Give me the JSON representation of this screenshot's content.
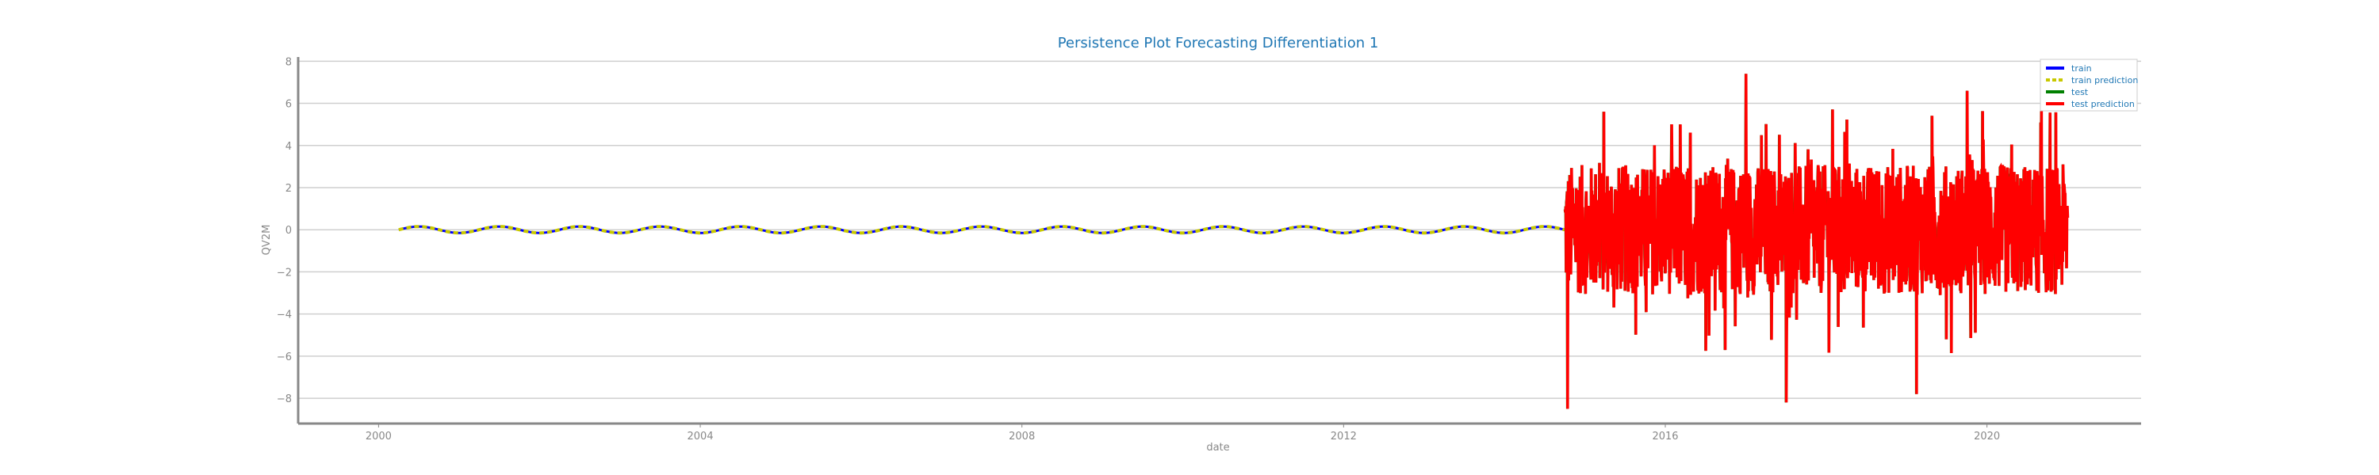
{
  "chart_data": {
    "type": "line",
    "title": "Persistence Plot Forecasting Differentiation 1",
    "xlabel": "date",
    "ylabel": "QV2M",
    "xlim": [
      "1999-01-01",
      "2021-12-01"
    ],
    "ylim": [
      -9.2,
      8.2
    ],
    "xticks": [
      "2000",
      "2004",
      "2008",
      "2012",
      "2016",
      "2020"
    ],
    "yticks": [
      8,
      6,
      4,
      2,
      0,
      -2,
      -4,
      -6,
      -8
    ],
    "ytick_labels": [
      "8",
      "6",
      "4",
      "2",
      "0",
      "−2",
      "−4",
      "−6",
      "−8"
    ],
    "grid": true,
    "legend_position": "top-right",
    "series": [
      {
        "name": "train",
        "color": "#0000ff",
        "x_range": [
          "2000-04-01",
          "2014-10-01"
        ],
        "amplitude": 0.15,
        "period_years": 1
      },
      {
        "name": "train prediction",
        "color": "#c8c800",
        "x_range": [
          "2000-04-01",
          "2014-10-01"
        ],
        "amplitude": 0.15,
        "period_years": 1
      },
      {
        "name": "test",
        "color": "#008000",
        "x_range": [
          "2014-10-01",
          "2021-01-01"
        ],
        "min": -8.5,
        "max": 7.4
      },
      {
        "name": "test prediction",
        "color": "#ff0000",
        "x_range": [
          "2014-10-01",
          "2021-01-01"
        ],
        "min": -8.5,
        "max": 7.4
      }
    ]
  }
}
